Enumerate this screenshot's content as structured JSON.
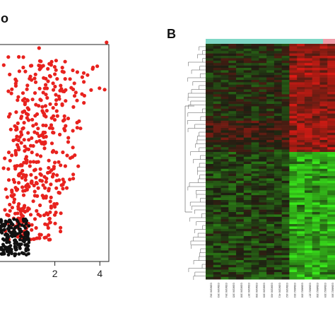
{
  "panels": {
    "a": {
      "label_suffix": "o"
    },
    "b": {
      "label": "B"
    }
  },
  "chart_data": [
    {
      "type": "scatter",
      "xlim": [
        -0.5,
        4.4
      ],
      "x_ticks": [
        "2",
        "4"
      ],
      "x_tick_values": [
        2,
        4
      ],
      "grid": false,
      "colors": {
        "significant": "#e8221e",
        "not_significant": "#111111"
      }
    },
    {
      "type": "heatmap",
      "colors": {
        "low": "#39e81b",
        "mid": "#1e1e12",
        "high": "#e81a14",
        "group1": "#7fd8c6",
        "group2": "#f09aa6"
      },
      "sample_labels": [
        "GSM190 392",
        "GSM190 393",
        "GSM190 394",
        "GSM190 395",
        "GSM190 396",
        "GSM190 397",
        "GSM190 398",
        "GSM190 399",
        "GSM190 400",
        "GSM190 401",
        "GSM190 402",
        "GSM862 353",
        "GSM862 356",
        "GSM862 357",
        "GSM862 358",
        "GSM862 359",
        "GSM862 360"
      ]
    }
  ]
}
